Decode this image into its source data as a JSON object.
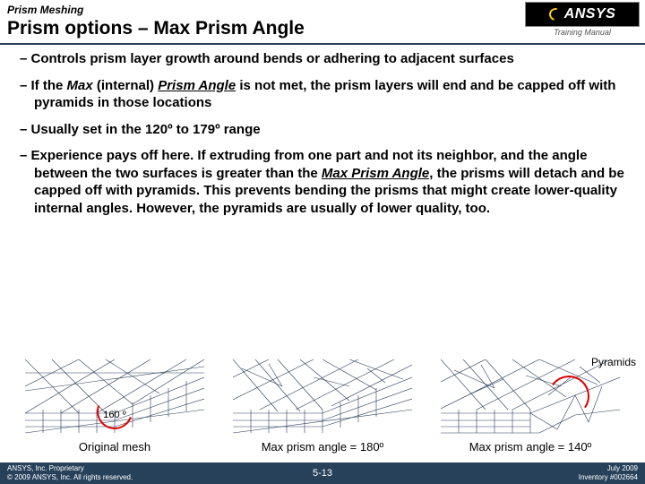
{
  "header": {
    "breadcrumb": "Prism Meshing",
    "title": "Prism options – Max Prism Angle",
    "logo_text": "ANSYS",
    "training_manual": "Training Manual"
  },
  "bullets": [
    {
      "html": "Controls prism layer growth around bends or adhering to adjacent surfaces"
    },
    {
      "html": "If the <span class='max'>Max</span> (internal) <span class='max under'>Prism Angle</span> is not met, the prism layers will end and be capped off with pyramids in those locations"
    },
    {
      "html": "Usually set in the 120º to 179º range"
    },
    {
      "html": "Experience pays off here.  If extruding from one part and not its neighbor, and the angle between the two surfaces is greater than the <span class='max under'>Max Prism Angle</span>, the prisms will detach and be capped off with pyramids.  This prevents bending the prisms that might create lower-quality internal angles.  However, the pyramids are usually of lower quality, too."
    }
  ],
  "diagrams": {
    "angle_label": "160 º",
    "caption_original": "Original mesh",
    "caption_180": "Max prism angle = 180º",
    "caption_140": "Max prism angle = 140º",
    "pyramids_label": "Pyramids",
    "mesh_color": "#2a3a5a",
    "accent_color": "#d00000"
  },
  "footer": {
    "proprietary": "ANSYS, Inc. Proprietary",
    "copyright": "© 2009 ANSYS, Inc. All rights reserved.",
    "page": "5-13",
    "date": "July 2009",
    "inventory": "Inventory #002664"
  },
  "colors": {
    "divider": "#28415a",
    "footer_bg": "#28415a",
    "text": "#000000",
    "footer_text": "#ffffff"
  }
}
